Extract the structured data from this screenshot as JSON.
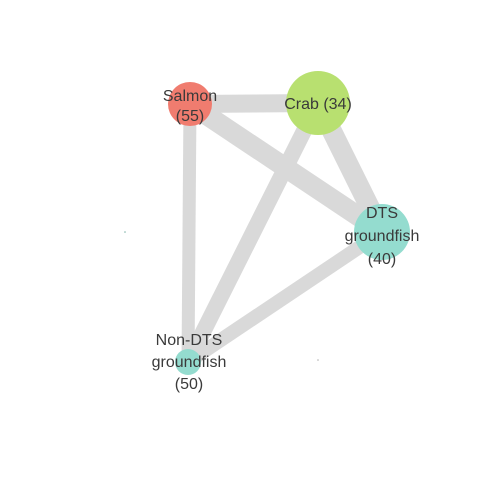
{
  "network": {
    "nodes": [
      {
        "id": "salmon",
        "lines": [
          "Salmon",
          "(55)"
        ],
        "color": "#f07c6f"
      },
      {
        "id": "crab",
        "lines": [
          "Crab (34)"
        ],
        "color": "#b8e070"
      },
      {
        "id": "dts",
        "lines": [
          "DTS",
          "groundfish",
          "(40)"
        ],
        "color": "#94dccf"
      },
      {
        "id": "nondts",
        "lines": [
          "Non-DTS",
          "groundfish",
          "(50)"
        ],
        "color": "#94dccf"
      }
    ],
    "edges": [
      {
        "from": "salmon",
        "to": "crab"
      },
      {
        "from": "salmon",
        "to": "dts"
      },
      {
        "from": "salmon",
        "to": "nondts"
      },
      {
        "from": "crab",
        "to": "dts"
      },
      {
        "from": "crab",
        "to": "nondts"
      },
      {
        "from": "dts",
        "to": "nondts"
      }
    ],
    "edge_color": "#d9d9d9"
  }
}
